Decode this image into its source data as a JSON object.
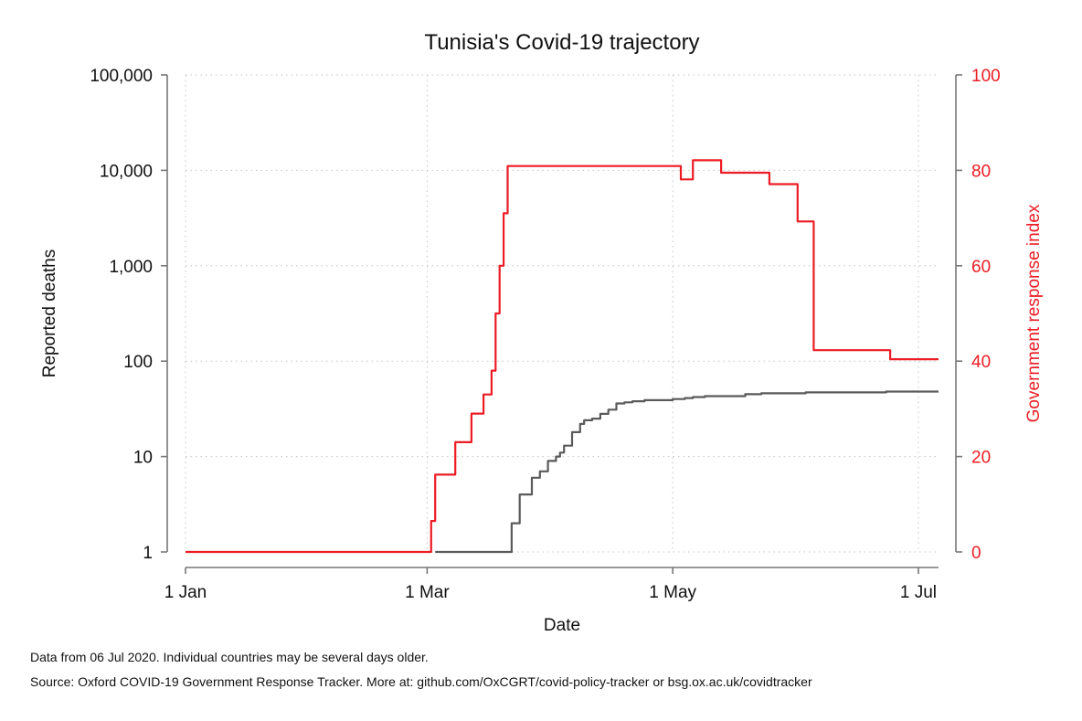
{
  "notes": {
    "data_date": "Data from 06 Jul 2020. Individual countries may be several days older.",
    "source": "Source: Oxford COVID-19 Government Response Tracker. More at: github.com/OxCGRT/covid-policy-tracker or bsg.ox.ac.uk/covidtracker"
  },
  "chart_data": {
    "type": "line",
    "title": "Tunisia's Covid-19 trajectory",
    "xlabel": "Date",
    "ylabel": "Reported deaths",
    "y2label": "Government response index",
    "xlim": [
      "2020-01-01",
      "2020-07-06"
    ],
    "ylim": [
      1,
      100000
    ],
    "yscale": "log",
    "y2lim": [
      0,
      100
    ],
    "x_ticks": [
      {
        "date": "2020-01-01",
        "label": "1 Jan"
      },
      {
        "date": "2020-03-01",
        "label": "1 Mar"
      },
      {
        "date": "2020-05-01",
        "label": "1 May"
      },
      {
        "date": "2020-07-01",
        "label": "1 Jul"
      }
    ],
    "y_ticks": [
      {
        "value": 1,
        "label": "1"
      },
      {
        "value": 10,
        "label": "10"
      },
      {
        "value": 100,
        "label": "100"
      },
      {
        "value": 1000,
        "label": "1,000"
      },
      {
        "value": 10000,
        "label": "10,000"
      },
      {
        "value": 100000,
        "label": "100,000"
      }
    ],
    "y2_ticks": [
      {
        "value": 0,
        "label": "0"
      },
      {
        "value": 20,
        "label": "20"
      },
      {
        "value": 40,
        "label": "40"
      },
      {
        "value": 60,
        "label": "60"
      },
      {
        "value": 80,
        "label": "80"
      },
      {
        "value": 100,
        "label": "100"
      }
    ],
    "grid": true,
    "series": [
      {
        "axis": "left",
        "color": "#5a5a5a",
        "step": true,
        "points": [
          [
            "2020-03-03",
            1
          ],
          [
            "2020-03-21",
            1
          ],
          [
            "2020-03-22",
            2
          ],
          [
            "2020-03-24",
            4
          ],
          [
            "2020-03-27",
            6
          ],
          [
            "2020-03-29",
            7
          ],
          [
            "2020-03-31",
            9
          ],
          [
            "2020-04-02",
            10
          ],
          [
            "2020-04-03",
            11
          ],
          [
            "2020-04-04",
            13
          ],
          [
            "2020-04-06",
            18
          ],
          [
            "2020-04-08",
            22
          ],
          [
            "2020-04-09",
            24
          ],
          [
            "2020-04-11",
            25
          ],
          [
            "2020-04-13",
            28
          ],
          [
            "2020-04-15",
            31
          ],
          [
            "2020-04-17",
            36
          ],
          [
            "2020-04-19",
            37
          ],
          [
            "2020-04-21",
            38
          ],
          [
            "2020-04-24",
            39
          ],
          [
            "2020-05-01",
            40
          ],
          [
            "2020-05-04",
            41
          ],
          [
            "2020-05-06",
            42
          ],
          [
            "2020-05-09",
            43
          ],
          [
            "2020-05-19",
            45
          ],
          [
            "2020-05-23",
            46
          ],
          [
            "2020-06-03",
            47
          ],
          [
            "2020-06-23",
            48
          ],
          [
            "2020-07-06",
            48
          ]
        ]
      },
      {
        "axis": "right",
        "color": "#ec1c24",
        "step": true,
        "points": [
          [
            "2020-01-01",
            0
          ],
          [
            "2020-03-01",
            0
          ],
          [
            "2020-03-02",
            6.5
          ],
          [
            "2020-03-03",
            16.2
          ],
          [
            "2020-03-08",
            23
          ],
          [
            "2020-03-12",
            29
          ],
          [
            "2020-03-15",
            33
          ],
          [
            "2020-03-17",
            38
          ],
          [
            "2020-03-18",
            50
          ],
          [
            "2020-03-19",
            60
          ],
          [
            "2020-03-20",
            71
          ],
          [
            "2020-03-21",
            80.9
          ],
          [
            "2020-04-30",
            80.9
          ],
          [
            "2020-05-03",
            78.1
          ],
          [
            "2020-05-06",
            82.1
          ],
          [
            "2020-05-13",
            79.5
          ],
          [
            "2020-05-25",
            77.1
          ],
          [
            "2020-06-01",
            69.3
          ],
          [
            "2020-06-05",
            42.3
          ],
          [
            "2020-06-24",
            40.4
          ],
          [
            "2020-07-06",
            40.4
          ]
        ]
      }
    ]
  }
}
